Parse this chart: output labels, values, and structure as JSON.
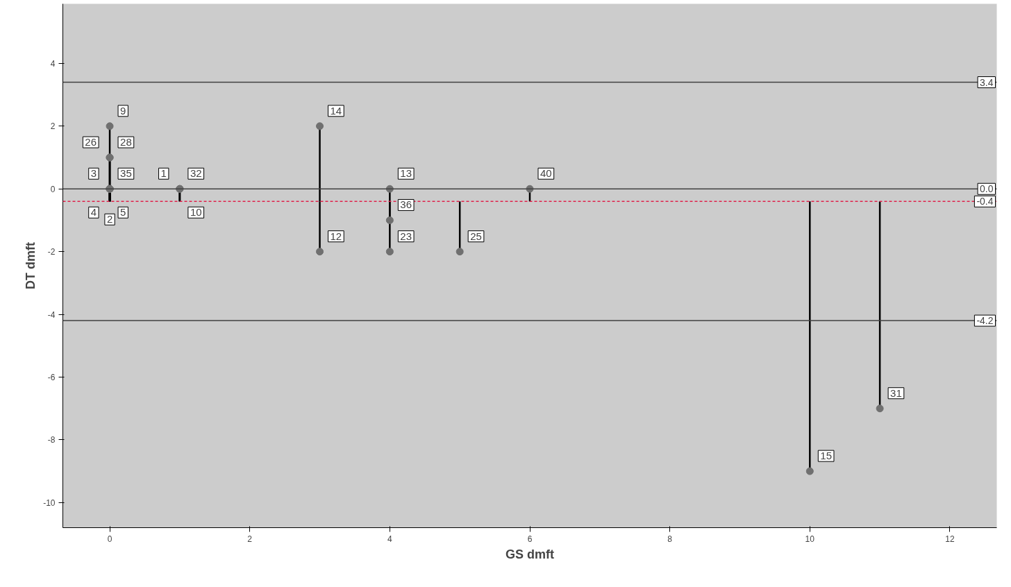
{
  "chart_data": {
    "type": "scatter",
    "xlabel": "GS dmft",
    "ylabel": "DT dmft",
    "x": [
      0,
      0,
      0,
      0,
      0,
      0,
      0,
      0,
      1,
      1,
      1,
      3,
      3,
      4,
      4,
      4,
      5,
      6,
      10,
      11
    ],
    "values": [
      2,
      1,
      1,
      0,
      0,
      0,
      0,
      0,
      0,
      0,
      0,
      2,
      -2,
      0,
      -1,
      -2,
      -2,
      0,
      -9,
      -7
    ],
    "errors": [
      [
        -0.4,
        2
      ],
      [
        -0.4,
        1
      ],
      [
        -0.4,
        1
      ],
      [
        -0.4,
        0
      ],
      [
        -0.4,
        0
      ],
      [
        -0.4,
        0
      ],
      [
        -0.4,
        0
      ],
      [
        -0.4,
        0
      ],
      [
        -0.4,
        0
      ],
      [
        -0.4,
        0
      ],
      [
        -0.4,
        0
      ],
      [
        -0.4,
        2
      ],
      [
        -2,
        -0.4
      ],
      [
        -0.4,
        0
      ],
      [
        -1,
        -0.4
      ],
      [
        -2,
        -0.4
      ],
      [
        -2,
        -0.4
      ],
      [
        -0.4,
        0
      ],
      [
        -9,
        -0.4
      ],
      [
        -7,
        -0.4
      ]
    ],
    "color": "#707070",
    "marker": "circle",
    "xlim": [
      -0.67,
      12.67
    ],
    "ylim": [
      -10.8,
      5.9
    ],
    "xticks": [
      0,
      2,
      4,
      6,
      8,
      10,
      12
    ],
    "yticks": [
      -10,
      -8,
      -6,
      -4,
      -2,
      0,
      2,
      4
    ],
    "ref_lines": [
      {
        "axis": "y",
        "value": 3.4,
        "label": "3.4",
        "color": "#404040",
        "line_style": "solid"
      },
      {
        "axis": "y",
        "value": 0.0,
        "label": "0.0",
        "color": "#404040",
        "line_style": "solid"
      },
      {
        "axis": "y",
        "value": -0.4,
        "label": "-0.4",
        "color": "#e0204a",
        "line_style": "dashed"
      },
      {
        "axis": "y",
        "value": -4.2,
        "label": "-4.2",
        "color": "#404040",
        "line_style": "solid"
      }
    ],
    "annotations": [
      {
        "text": "9",
        "x": 0,
        "y": 2
      },
      {
        "text": "28",
        "x": 0,
        "y": 1
      },
      {
        "text": "26",
        "x": 0,
        "y": 1
      },
      {
        "text": "35",
        "x": 0,
        "y": 0
      },
      {
        "text": "3",
        "x": 0,
        "y": 0
      },
      {
        "text": "5",
        "x": 0,
        "y": 0
      },
      {
        "text": "4",
        "x": 0,
        "y": 0
      },
      {
        "text": "2",
        "x": 0,
        "y": 0
      },
      {
        "text": "32",
        "x": 1,
        "y": 0
      },
      {
        "text": "1",
        "x": 1,
        "y": 0
      },
      {
        "text": "10",
        "x": 1,
        "y": 0
      },
      {
        "text": "14",
        "x": 3,
        "y": 2
      },
      {
        "text": "12",
        "x": 3,
        "y": -2
      },
      {
        "text": "13",
        "x": 4,
        "y": 0
      },
      {
        "text": "36",
        "x": 4,
        "y": -1
      },
      {
        "text": "23",
        "x": 4,
        "y": -2
      },
      {
        "text": "25",
        "x": 5,
        "y": -2
      },
      {
        "text": "40",
        "x": 6,
        "y": 0
      },
      {
        "text": "15",
        "x": 10,
        "y": -9
      },
      {
        "text": "31",
        "x": 11,
        "y": -7
      }
    ]
  }
}
